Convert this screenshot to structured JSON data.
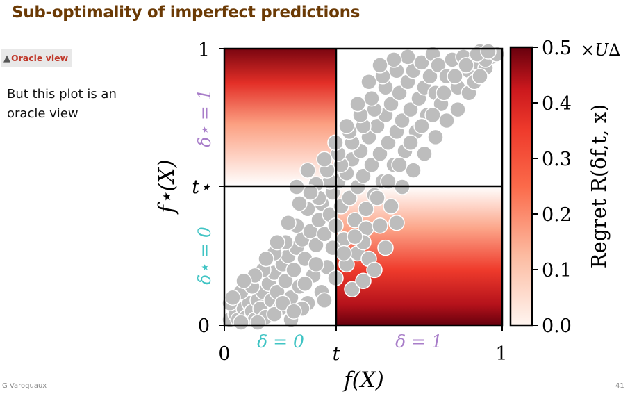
{
  "slide": {
    "title": "Sub-optimality of imperfect predictions",
    "badge_icon": "warning-icon",
    "badge_label": "Oracle view",
    "note": "But this plot is an oracle view",
    "footer_author": "G Varoquaux",
    "page_number": "41"
  },
  "colors": {
    "title": "#6b3a05",
    "badge_text": "#c0392b",
    "point_fill": "#bdbdbd",
    "delta0_label": "#40c4c4",
    "delta1_label": "#a87dc9",
    "cmap_low": "#fff5f0",
    "cmap_mid": "#ef3b2c",
    "cmap_high": "#67000d"
  },
  "chart_data": {
    "type": "scatter",
    "xlabel": "f(X)",
    "ylabel": "f⋆(X)",
    "xlim": [
      0,
      1
    ],
    "ylim": [
      0,
      1
    ],
    "threshold": 0.4,
    "x_ticks": [
      "0",
      "t",
      "1"
    ],
    "y_ticks": [
      "0",
      "t⋆",
      "1"
    ],
    "region_labels": {
      "x_left": "δ = 0",
      "x_right": "δ = 1",
      "y_bottom": "δ⋆ = 0",
      "y_top": "δ⋆ = 1"
    },
    "colorbar": {
      "label": "Regret R(δf,t, x)",
      "range": [
        0,
        0.5
      ],
      "ticks": [
        "0.0",
        "0.1",
        "0.2",
        "0.3",
        "0.4",
        "0.5"
      ],
      "scale_label": "×U∆"
    },
    "points": [
      [
        0.02,
        0.02
      ],
      [
        0.04,
        0.04
      ],
      [
        0.05,
        0.02
      ],
      [
        0.07,
        0.06
      ],
      [
        0.08,
        0.03
      ],
      [
        0.09,
        0.08
      ],
      [
        0.1,
        0.05
      ],
      [
        0.11,
        0.02
      ],
      [
        0.12,
        0.09
      ],
      [
        0.13,
        0.06
      ],
      [
        0.14,
        0.12
      ],
      [
        0.15,
        0.03
      ],
      [
        0.16,
        0.15
      ],
      [
        0.17,
        0.09
      ],
      [
        0.18,
        0.19
      ],
      [
        0.19,
        0.12
      ],
      [
        0.2,
        0.06
      ],
      [
        0.21,
        0.22
      ],
      [
        0.22,
        0.16
      ],
      [
        0.23,
        0.25
      ],
      [
        0.24,
        0.1
      ],
      [
        0.25,
        0.2
      ],
      [
        0.26,
        0.28
      ],
      [
        0.27,
        0.14
      ],
      [
        0.28,
        0.31
      ],
      [
        0.29,
        0.24
      ],
      [
        0.3,
        0.08
      ],
      [
        0.31,
        0.34
      ],
      [
        0.32,
        0.18
      ],
      [
        0.33,
        0.29
      ],
      [
        0.34,
        0.38
      ],
      [
        0.35,
        0.12
      ],
      [
        0.35,
        0.44
      ],
      [
        0.36,
        0.33
      ],
      [
        0.37,
        0.21
      ],
      [
        0.38,
        0.4
      ],
      [
        0.39,
        0.48
      ],
      [
        0.4,
        0.36
      ],
      [
        0.41,
        0.52
      ],
      [
        0.42,
        0.43
      ],
      [
        0.43,
        0.31
      ],
      [
        0.44,
        0.55
      ],
      [
        0.45,
        0.46
      ],
      [
        0.46,
        0.6
      ],
      [
        0.47,
        0.38
      ],
      [
        0.48,
        0.5
      ],
      [
        0.49,
        0.63
      ],
      [
        0.5,
        0.54
      ],
      [
        0.51,
        0.35
      ],
      [
        0.52,
        0.68
      ],
      [
        0.53,
        0.58
      ],
      [
        0.54,
        0.47
      ],
      [
        0.55,
        0.72
      ],
      [
        0.56,
        0.62
      ],
      [
        0.57,
        0.52
      ],
      [
        0.58,
        0.76
      ],
      [
        0.59,
        0.66
      ],
      [
        0.6,
        0.8
      ],
      [
        0.61,
        0.58
      ],
      [
        0.62,
        0.7
      ],
      [
        0.63,
        0.84
      ],
      [
        0.64,
        0.74
      ],
      [
        0.65,
        0.63
      ],
      [
        0.66,
        0.88
      ],
      [
        0.67,
        0.78
      ],
      [
        0.68,
        0.92
      ],
      [
        0.69,
        0.7
      ],
      [
        0.7,
        0.82
      ],
      [
        0.71,
        0.95
      ],
      [
        0.72,
        0.86
      ],
      [
        0.73,
        0.76
      ],
      [
        0.74,
        0.9
      ],
      [
        0.75,
        0.98
      ],
      [
        0.76,
        0.84
      ],
      [
        0.77,
        0.94
      ],
      [
        0.78,
        0.8
      ],
      [
        0.8,
        0.9
      ],
      [
        0.82,
        0.96
      ],
      [
        0.84,
        0.86
      ],
      [
        0.86,
        0.97
      ],
      [
        0.88,
        0.92
      ],
      [
        0.9,
        0.95
      ],
      [
        0.92,
        0.99
      ],
      [
        0.94,
        0.93
      ],
      [
        0.96,
        0.97
      ],
      [
        0.02,
        0.08
      ],
      [
        0.06,
        0.12
      ],
      [
        0.1,
        0.14
      ],
      [
        0.14,
        0.2
      ],
      [
        0.18,
        0.26
      ],
      [
        0.22,
        0.3
      ],
      [
        0.26,
        0.36
      ],
      [
        0.3,
        0.42
      ],
      [
        0.34,
        0.46
      ],
      [
        0.38,
        0.52
      ],
      [
        0.42,
        0.58
      ],
      [
        0.46,
        0.66
      ],
      [
        0.5,
        0.72
      ],
      [
        0.54,
        0.78
      ],
      [
        0.58,
        0.86
      ],
      [
        0.62,
        0.92
      ],
      [
        0.66,
        0.97
      ],
      [
        0.06,
        0.01
      ],
      [
        0.12,
        0.01
      ],
      [
        0.18,
        0.04
      ],
      [
        0.24,
        0.02
      ],
      [
        0.28,
        0.06
      ],
      [
        0.36,
        0.09
      ],
      [
        0.4,
        0.17
      ],
      [
        0.44,
        0.22
      ],
      [
        0.48,
        0.26
      ],
      [
        0.5,
        0.3
      ],
      [
        0.52,
        0.24
      ],
      [
        0.56,
        0.36
      ],
      [
        0.6,
        0.43
      ],
      [
        0.62,
        0.37
      ],
      [
        0.64,
        0.5
      ],
      [
        0.68,
        0.56
      ],
      [
        0.72,
        0.62
      ],
      [
        0.76,
        0.68
      ],
      [
        0.8,
        0.74
      ],
      [
        0.84,
        0.78
      ],
      [
        0.88,
        0.84
      ],
      [
        0.9,
        0.88
      ],
      [
        0.92,
        0.9
      ],
      [
        0.94,
        0.96
      ],
      [
        0.98,
        0.98
      ],
      [
        0.33,
        0.51
      ],
      [
        0.37,
        0.56
      ],
      [
        0.41,
        0.62
      ],
      [
        0.45,
        0.7
      ],
      [
        0.49,
        0.76
      ],
      [
        0.53,
        0.82
      ],
      [
        0.57,
        0.9
      ],
      [
        0.61,
        0.96
      ],
      [
        0.27,
        0.44
      ],
      [
        0.31,
        0.48
      ],
      [
        0.39,
        0.28
      ],
      [
        0.43,
        0.26
      ],
      [
        0.47,
        0.32
      ],
      [
        0.51,
        0.42
      ],
      [
        0.55,
        0.46
      ],
      [
        0.59,
        0.52
      ],
      [
        0.63,
        0.58
      ],
      [
        0.67,
        0.66
      ],
      [
        0.71,
        0.72
      ],
      [
        0.75,
        0.76
      ],
      [
        0.79,
        0.84
      ],
      [
        0.83,
        0.9
      ],
      [
        0.87,
        0.94
      ],
      [
        0.91,
        0.98
      ],
      [
        0.95,
        0.99
      ],
      [
        0.15,
        0.24
      ],
      [
        0.19,
        0.3
      ],
      [
        0.23,
        0.37
      ],
      [
        0.11,
        0.18
      ],
      [
        0.07,
        0.16
      ],
      [
        0.03,
        0.1
      ],
      [
        0.21,
        0.08
      ],
      [
        0.25,
        0.05
      ],
      [
        0.29,
        0.15
      ],
      [
        0.33,
        0.22
      ],
      [
        0.46,
        0.13
      ],
      [
        0.5,
        0.16
      ],
      [
        0.54,
        0.2
      ],
      [
        0.58,
        0.28
      ],
      [
        0.36,
        0.6
      ],
      [
        0.4,
        0.66
      ],
      [
        0.44,
        0.72
      ],
      [
        0.48,
        0.8
      ],
      [
        0.52,
        0.88
      ],
      [
        0.56,
        0.94
      ],
      [
        0.3,
        0.56
      ],
      [
        0.26,
        0.5
      ]
    ]
  }
}
